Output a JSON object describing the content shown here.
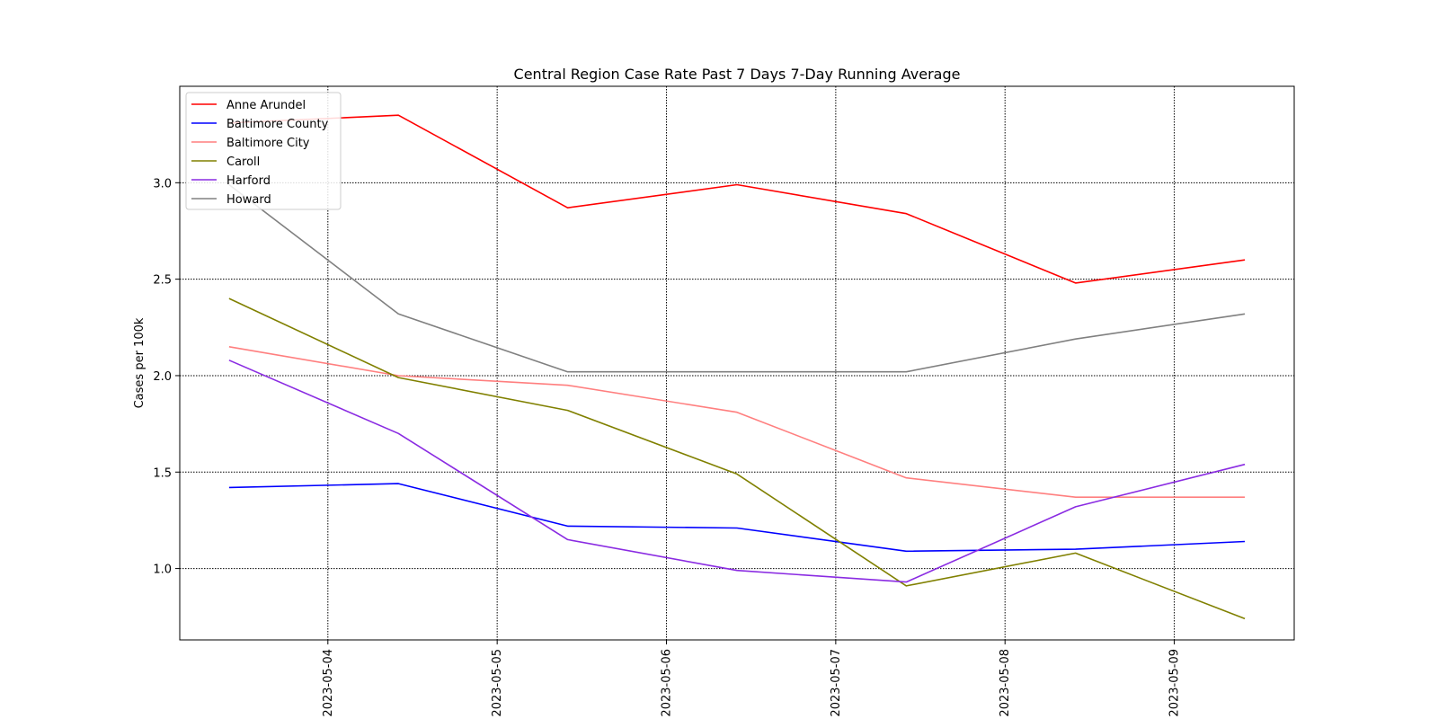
{
  "chart_data": {
    "type": "line",
    "title": "Central Region Case Rate  Past 7 Days 7-Day Running Average",
    "xlabel": "",
    "ylabel": "Cases per 100k",
    "x": [
      "2023-05-03 10:00",
      "2023-05-04 10:00",
      "2023-05-05 10:00",
      "2023-05-06 10:00",
      "2023-05-07 10:00",
      "2023-05-08 10:00",
      "2023-05-09 10:00"
    ],
    "xticks": [
      "2023-05-04",
      "2023-05-05",
      "2023-05-06",
      "2023-05-07",
      "2023-05-08",
      "2023-05-09"
    ],
    "xlim": [
      "2023-05-03 03:00",
      "2023-05-09 17:00"
    ],
    "yticks": [
      "1.0",
      "1.5",
      "2.0",
      "2.5",
      "3.0"
    ],
    "ylim": [
      0.63,
      3.5
    ],
    "grid": true,
    "legend_position": "top-left",
    "series": [
      {
        "name": "Anne Arundel",
        "color": "#ff0000",
        "values": [
          3.31,
          3.35,
          2.87,
          2.99,
          2.84,
          2.48,
          2.6
        ]
      },
      {
        "name": "Baltimore County",
        "color": "#0000ff",
        "values": [
          1.42,
          1.44,
          1.22,
          1.21,
          1.09,
          1.1,
          1.14
        ]
      },
      {
        "name": "Baltimore City",
        "color": "#ff7f7f",
        "values": [
          2.15,
          2.0,
          1.95,
          1.81,
          1.47,
          1.37,
          1.37
        ]
      },
      {
        "name": "Caroll",
        "color": "#808000",
        "values": [
          2.4,
          1.99,
          1.82,
          1.49,
          0.91,
          1.08,
          0.74
        ]
      },
      {
        "name": "Harford",
        "color": "#8a2be2",
        "values": [
          2.08,
          1.7,
          1.15,
          0.99,
          0.93,
          1.32,
          1.54
        ]
      },
      {
        "name": "Howard",
        "color": "#808080",
        "values": [
          2.99,
          2.32,
          2.02,
          2.02,
          2.02,
          2.19,
          2.32
        ]
      }
    ]
  }
}
